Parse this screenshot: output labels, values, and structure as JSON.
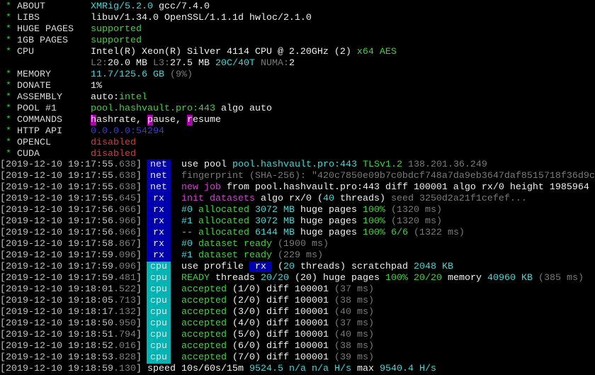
{
  "colors": {
    "tag_blue": "#0000b0",
    "tag_cyan": "#00b4b4",
    "green": "#3fd23f",
    "cyan": "#3fd8d8",
    "magenta": "#d040d0",
    "red": "#d83a3a",
    "blue": "#3b3bd8",
    "gray": "#7a7a7a"
  },
  "header": [
    {
      "label": "ABOUT",
      "segs": [
        [
          "XMRig/5.2.0",
          "c"
        ],
        [
          " gcc/7.4.0",
          "W"
        ]
      ]
    },
    {
      "label": "LIBS",
      "segs": [
        [
          "libuv/1.34.0 OpenSSL/1.1.1d hwloc/2.1.0",
          "W"
        ]
      ]
    },
    {
      "label": "HUGE PAGES",
      "segs": [
        [
          "supported",
          "g"
        ]
      ]
    },
    {
      "label": "1GB PAGES",
      "segs": [
        [
          "supported",
          "g"
        ]
      ]
    },
    {
      "label": "CPU",
      "segs": [
        [
          "Intel(R) Xeon(R) Silver 4114 CPU @ 2.20GHz (2)",
          "W"
        ],
        [
          " x64 AES",
          "g"
        ]
      ]
    },
    {
      "label": "",
      "segs": [
        [
          "L2:",
          "k"
        ],
        [
          "20.0 MB ",
          "W"
        ],
        [
          "L3:",
          "k"
        ],
        [
          "27.5 MB ",
          "W"
        ],
        [
          "20C/40T",
          "c"
        ],
        [
          " NUMA:",
          "k"
        ],
        [
          "2",
          "W"
        ]
      ]
    },
    {
      "label": "MEMORY",
      "segs": [
        [
          "11.7/125.6 GB",
          "c"
        ],
        [
          " (9%)",
          "k"
        ]
      ]
    },
    {
      "label": "DONATE",
      "segs": [
        [
          "1%",
          "W"
        ]
      ]
    },
    {
      "label": "ASSEMBLY",
      "segs": [
        [
          "auto:",
          "W"
        ],
        [
          "intel",
          "g"
        ]
      ]
    },
    {
      "label": "POOL #1",
      "segs": [
        [
          "pool.hashvault.pro:443",
          "g"
        ],
        [
          " algo auto",
          "W"
        ]
      ]
    },
    {
      "label": "COMMANDS",
      "segs": [
        [
          "h",
          "hl"
        ],
        [
          "ashrate, ",
          "W"
        ],
        [
          "p",
          "hl"
        ],
        [
          "ause, ",
          "W"
        ],
        [
          "r",
          "hl"
        ],
        [
          "esume",
          "W"
        ]
      ]
    },
    {
      "label": "HTTP API",
      "segs": [
        [
          "0.0.0.0:54294",
          "b"
        ]
      ]
    },
    {
      "label": "OPENCL",
      "segs": [
        [
          "disabled",
          "r"
        ]
      ]
    },
    {
      "label": "CUDA",
      "segs": [
        [
          "disabled",
          "r"
        ]
      ]
    }
  ],
  "log": [
    {
      "ts": "[2019-12-10 19:17:55",
      "ms": ".638",
      "tag": "net",
      "segs": [
        [
          "use pool ",
          "W"
        ],
        [
          "pool.hashvault.pro:443 ",
          "c"
        ],
        [
          "TLSv1.2 ",
          "g"
        ],
        [
          "138.201.36.249",
          "k"
        ]
      ]
    },
    {
      "ts": "[2019-12-10 19:17:55",
      "ms": ".638",
      "tag": "net",
      "segs": [
        [
          "fingerprint (SHA-256): \"420c7850e09b7c0bdcf748a7da9eb3647daf8515718f36d9c",
          "k"
        ]
      ]
    },
    {
      "ts": "[2019-12-10 19:17:55",
      "ms": ".638",
      "tag": "net",
      "segs": [
        [
          "new job",
          "m"
        ],
        [
          " from pool.hashvault.pro:443 diff 100001 algo rx/0 height 1985964",
          "W"
        ]
      ]
    },
    {
      "ts": "[2019-12-10 19:17:55",
      "ms": ".645",
      "tag": "rx",
      "segs": [
        [
          "init datasets",
          "m"
        ],
        [
          " algo rx/0 (",
          "W"
        ],
        [
          "40",
          "c"
        ],
        [
          " threads)",
          "W"
        ],
        [
          " seed 3250d2a21f1cefef...",
          "k"
        ]
      ]
    },
    {
      "ts": "[2019-12-10 19:17:56",
      "ms": ".966",
      "tag": "rx",
      "segs": [
        [
          "#0",
          "c"
        ],
        [
          " allocated",
          "g"
        ],
        [
          " 3072 MB",
          "c"
        ],
        [
          " huge pages",
          "W"
        ],
        [
          " 100%",
          "g"
        ],
        [
          " (1320 ms)",
          "k"
        ]
      ]
    },
    {
      "ts": "[2019-12-10 19:17:56",
      "ms": ".966",
      "tag": "rx",
      "segs": [
        [
          "#1",
          "c"
        ],
        [
          " allocated",
          "g"
        ],
        [
          " 3072 MB",
          "c"
        ],
        [
          " huge pages",
          "W"
        ],
        [
          " 100%",
          "g"
        ],
        [
          " (1320 ms)",
          "k"
        ]
      ]
    },
    {
      "ts": "[2019-12-10 19:17:56",
      "ms": ".966",
      "tag": "rx",
      "segs": [
        [
          "--",
          "c"
        ],
        [
          " allocated",
          "g"
        ],
        [
          " 6144 MB",
          "c"
        ],
        [
          " huge pages",
          "W"
        ],
        [
          " 100% 6/6",
          "g"
        ],
        [
          " (1322 ms)",
          "k"
        ]
      ]
    },
    {
      "ts": "[2019-12-10 19:17:58",
      "ms": ".867",
      "tag": "rx",
      "segs": [
        [
          "#0",
          "c"
        ],
        [
          " dataset ready",
          "g"
        ],
        [
          " (1900 ms)",
          "k"
        ]
      ]
    },
    {
      "ts": "[2019-12-10 19:17:59",
      "ms": ".096",
      "tag": "rx",
      "segs": [
        [
          "#1",
          "c"
        ],
        [
          " dataset ready",
          "g"
        ],
        [
          " (229 ms)",
          "k"
        ]
      ]
    },
    {
      "ts": "[2019-12-10 19:17:59",
      "ms": ".096",
      "tag": "cpu",
      "segs": [
        [
          "use profile ",
          "W"
        ],
        [
          " rx ",
          "bx"
        ],
        [
          " (",
          "W"
        ],
        [
          "20",
          "c"
        ],
        [
          " threads)",
          "W"
        ],
        [
          " scratchpad ",
          "W"
        ],
        [
          "2048 KB",
          "c"
        ]
      ]
    },
    {
      "ts": "[2019-12-10 19:17:59",
      "ms": ".481",
      "tag": "cpu",
      "segs": [
        [
          "READY",
          "g"
        ],
        [
          " threads ",
          "W"
        ],
        [
          "20/20",
          "c"
        ],
        [
          " (20)",
          "W"
        ],
        [
          " huge pages ",
          "W"
        ],
        [
          "100% 20/20",
          "g"
        ],
        [
          " memory ",
          "W"
        ],
        [
          "40960 KB",
          "c"
        ],
        [
          " (385 ms)",
          "k"
        ]
      ]
    },
    {
      "ts": "[2019-12-10 19:18:01",
      "ms": ".522",
      "tag": "cpu",
      "segs": [
        [
          "accepted",
          "g"
        ],
        [
          " (1/0) diff ",
          "W"
        ],
        [
          "100001",
          "W"
        ],
        [
          " (37 ms)",
          "k"
        ]
      ]
    },
    {
      "ts": "[2019-12-10 19:18:05",
      "ms": ".713",
      "tag": "cpu",
      "segs": [
        [
          "accepted",
          "g"
        ],
        [
          " (2/0) diff ",
          "W"
        ],
        [
          "100001",
          "W"
        ],
        [
          " (38 ms)",
          "k"
        ]
      ]
    },
    {
      "ts": "[2019-12-10 19:18:17",
      "ms": ".132",
      "tag": "cpu",
      "segs": [
        [
          "accepted",
          "g"
        ],
        [
          " (3/0) diff ",
          "W"
        ],
        [
          "100001",
          "W"
        ],
        [
          " (40 ms)",
          "k"
        ]
      ]
    },
    {
      "ts": "[2019-12-10 19:18:50",
      "ms": ".950",
      "tag": "cpu",
      "segs": [
        [
          "accepted",
          "g"
        ],
        [
          " (4/0) diff ",
          "W"
        ],
        [
          "100001",
          "W"
        ],
        [
          " (37 ms)",
          "k"
        ]
      ]
    },
    {
      "ts": "[2019-12-10 19:18:51",
      "ms": ".794",
      "tag": "cpu",
      "segs": [
        [
          "accepted",
          "g"
        ],
        [
          " (5/0) diff ",
          "W"
        ],
        [
          "100001",
          "W"
        ],
        [
          " (40 ms)",
          "k"
        ]
      ]
    },
    {
      "ts": "[2019-12-10 19:18:52",
      "ms": ".016",
      "tag": "cpu",
      "segs": [
        [
          "accepted",
          "g"
        ],
        [
          " (6/0) diff ",
          "W"
        ],
        [
          "100001",
          "W"
        ],
        [
          " (38 ms)",
          "k"
        ]
      ]
    },
    {
      "ts": "[2019-12-10 19:18:53",
      "ms": ".828",
      "tag": "cpu",
      "segs": [
        [
          "accepted",
          "g"
        ],
        [
          " (7/0) diff ",
          "W"
        ],
        [
          "100001",
          "W"
        ],
        [
          " (39 ms)",
          "k"
        ]
      ]
    },
    {
      "ts": "[2019-12-10 19:18:59",
      "ms": ".130",
      "tag": "",
      "segs": [
        [
          "speed",
          "W"
        ],
        [
          " 10s/60s/15m ",
          "W"
        ],
        [
          "9524.5 n/a n/a H/s",
          "c"
        ],
        [
          " max ",
          "W"
        ],
        [
          "9540.4 H/s",
          "c"
        ]
      ]
    }
  ]
}
